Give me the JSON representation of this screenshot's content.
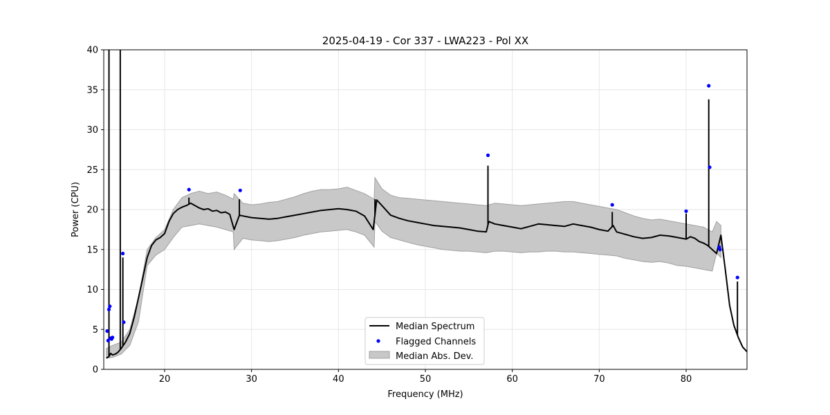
{
  "chart_data": {
    "type": "line",
    "title": "2025-04-19 - Cor 337 - LWA223 - Pol XX",
    "xlabel": "Frequency (MHz)",
    "ylabel": "Power (CPU)",
    "xlim": [
      13,
      87
    ],
    "ylim": [
      0,
      40
    ],
    "xticks": [
      20,
      30,
      40,
      50,
      60,
      70,
      80
    ],
    "yticks": [
      0,
      5,
      10,
      15,
      20,
      25,
      30,
      35,
      40
    ],
    "grid": true,
    "legend_position": "lower-center",
    "legend": {
      "median": "Median Spectrum",
      "flagged": "Flagged Channels",
      "mad": "Median Abs. Dev."
    },
    "colors": {
      "median": "#000000",
      "flagged": "#0000ff",
      "mad_fill": "#c8c8c8",
      "mad_edge": "#a0a0a0",
      "grid": "#e6e6e6"
    },
    "median_spectrum": {
      "x": [
        13.3,
        13.6,
        13.8,
        14.0,
        14.3,
        14.6,
        15.0,
        15.5,
        16.0,
        16.5,
        17.0,
        17.5,
        18.0,
        18.5,
        19.0,
        19.5,
        20.0,
        20.5,
        21.0,
        21.5,
        22.0,
        22.5,
        23.0,
        23.5,
        24.0,
        24.5,
        25.0,
        25.5,
        26.0,
        26.5,
        27.0,
        27.5,
        28.0,
        28.6,
        29.0,
        30.0,
        31.0,
        32.0,
        33.0,
        34.0,
        35.0,
        36.0,
        37.0,
        38.0,
        39.0,
        40.0,
        41.0,
        42.0,
        43.0,
        44.0,
        44.4,
        45.0,
        46.0,
        47.0,
        48.0,
        49.0,
        50.0,
        51.0,
        52.0,
        53.0,
        54.0,
        55.0,
        56.0,
        57.0,
        57.3,
        58.0,
        59.0,
        60.0,
        61.0,
        62.0,
        63.0,
        64.0,
        65.0,
        66.0,
        67.0,
        68.0,
        69.0,
        70.0,
        71.0,
        71.6,
        72.0,
        73.0,
        74.0,
        75.0,
        76.0,
        77.0,
        78.0,
        79.0,
        80.0,
        80.5,
        81.0,
        81.5,
        82.0,
        82.5,
        83.0,
        83.5,
        84.0,
        84.5,
        85.0,
        85.5,
        86.0,
        86.5,
        87.0
      ],
      "y": [
        1.4,
        1.6,
        2.0,
        1.8,
        1.9,
        2.1,
        2.6,
        3.4,
        4.5,
        6.5,
        9.0,
        11.5,
        14.0,
        15.5,
        16.2,
        16.5,
        17.0,
        18.5,
        19.5,
        20.0,
        20.3,
        20.5,
        20.8,
        20.5,
        20.2,
        20.0,
        20.1,
        19.8,
        19.9,
        19.6,
        19.7,
        19.4,
        17.5,
        19.3,
        19.2,
        19.0,
        18.9,
        18.8,
        18.9,
        19.1,
        19.3,
        19.5,
        19.7,
        19.9,
        20.0,
        20.1,
        20.0,
        19.8,
        19.2,
        17.5,
        21.2,
        20.5,
        19.3,
        18.9,
        18.6,
        18.4,
        18.2,
        18.0,
        17.9,
        17.8,
        17.7,
        17.5,
        17.3,
        17.2,
        18.5,
        18.2,
        18.0,
        17.8,
        17.6,
        17.9,
        18.2,
        18.1,
        18.0,
        17.9,
        18.2,
        18.0,
        17.8,
        17.5,
        17.3,
        18.0,
        17.2,
        16.9,
        16.6,
        16.4,
        16.5,
        16.8,
        16.7,
        16.5,
        16.3,
        16.6,
        16.4,
        16.0,
        15.8,
        15.5,
        15.0,
        14.5,
        16.8,
        12.5,
        8.0,
        5.5,
        4.0,
        2.8,
        2.2
      ]
    },
    "spikes": [
      {
        "x": 13.6,
        "y": 40.0
      },
      {
        "x": 14.9,
        "y": 40.0
      },
      {
        "x": 15.2,
        "y": 14.0
      },
      {
        "x": 22.8,
        "y": 21.5
      },
      {
        "x": 28.6,
        "y": 21.3
      },
      {
        "x": 44.2,
        "y": 21.3
      },
      {
        "x": 57.2,
        "y": 25.5
      },
      {
        "x": 71.5,
        "y": 19.7
      },
      {
        "x": 80.0,
        "y": 19.5
      },
      {
        "x": 82.6,
        "y": 33.8
      },
      {
        "x": 85.9,
        "y": 11.0
      }
    ],
    "median_abs_dev": {
      "x": [
        13.3,
        14.0,
        15.0,
        16.0,
        17.0,
        18.0,
        19.0,
        20.0,
        21.0,
        22.0,
        23.0,
        24.0,
        25.0,
        26.0,
        27.0,
        27.9,
        28.0,
        29.0,
        30.0,
        31.0,
        32.0,
        33.0,
        34.0,
        35.0,
        36.0,
        37.0,
        38.0,
        39.0,
        40.0,
        41.0,
        42.0,
        43.0,
        44.1,
        44.2,
        45.0,
        46.0,
        47.0,
        48.0,
        49.0,
        50.0,
        51.0,
        52.0,
        53.0,
        54.0,
        55.0,
        56.0,
        57.0,
        58.0,
        59.0,
        60.0,
        61.0,
        62.0,
        63.0,
        64.0,
        65.0,
        66.0,
        67.0,
        68.0,
        69.0,
        70.0,
        71.0,
        72.0,
        73.0,
        74.0,
        75.0,
        76.0,
        77.0,
        78.0,
        79.0,
        80.0,
        81.0,
        82.0,
        82.5,
        83.0,
        83.5,
        84.0
      ],
      "upper": [
        2.6,
        3.0,
        3.4,
        5.0,
        9.0,
        15.0,
        16.5,
        17.5,
        20.0,
        21.5,
        22.0,
        22.3,
        22.0,
        22.2,
        21.8,
        21.3,
        22.0,
        20.8,
        20.6,
        20.7,
        20.9,
        21.0,
        21.3,
        21.6,
        22.0,
        22.3,
        22.5,
        22.5,
        22.6,
        22.8,
        22.4,
        22.0,
        21.3,
        24.0,
        22.6,
        21.8,
        21.5,
        21.4,
        21.3,
        21.2,
        21.1,
        21.0,
        20.9,
        20.8,
        20.7,
        20.6,
        20.5,
        20.8,
        20.7,
        20.6,
        20.5,
        20.6,
        20.7,
        20.8,
        20.9,
        21.0,
        21.0,
        20.8,
        20.6,
        20.4,
        20.2,
        20.0,
        19.6,
        19.2,
        18.9,
        18.7,
        18.8,
        18.6,
        18.4,
        18.2,
        18.0,
        17.8,
        17.5,
        17.2,
        18.5,
        18.0
      ],
      "lower": [
        1.4,
        1.5,
        1.9,
        3.0,
        6.0,
        13.0,
        14.3,
        15.0,
        16.5,
        17.8,
        18.0,
        18.2,
        18.0,
        17.8,
        17.5,
        17.2,
        15.0,
        16.4,
        16.2,
        16.1,
        16.0,
        16.1,
        16.3,
        16.5,
        16.8,
        17.0,
        17.2,
        17.3,
        17.4,
        17.5,
        17.2,
        16.8,
        15.3,
        18.5,
        17.3,
        16.5,
        16.2,
        15.9,
        15.6,
        15.4,
        15.2,
        15.0,
        14.9,
        14.8,
        14.8,
        14.7,
        14.6,
        14.8,
        14.8,
        14.7,
        14.6,
        14.7,
        14.7,
        14.8,
        14.8,
        14.7,
        14.7,
        14.6,
        14.5,
        14.4,
        14.3,
        14.2,
        13.9,
        13.7,
        13.5,
        13.4,
        13.5,
        13.3,
        13.0,
        12.9,
        12.7,
        12.5,
        12.4,
        12.3,
        14.5,
        14.0
      ]
    },
    "flagged_channels": {
      "x": [
        13.4,
        13.5,
        13.6,
        13.7,
        13.8,
        13.9,
        14.0,
        15.2,
        15.3,
        22.8,
        28.7,
        57.2,
        71.5,
        80.0,
        82.6,
        82.7,
        83.8,
        83.9,
        85.9
      ],
      "y": [
        4.8,
        3.6,
        7.5,
        7.9,
        3.9,
        3.8,
        4.0,
        14.5,
        5.9,
        22.5,
        22.4,
        26.8,
        20.6,
        19.8,
        35.5,
        25.3,
        15.3,
        15.0,
        11.5
      ]
    }
  }
}
